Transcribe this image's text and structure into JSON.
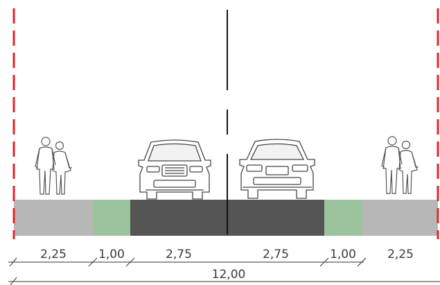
{
  "cross_section": {
    "segments": [
      {
        "name": "sidewalk-left",
        "width_label": "2,25",
        "color": "#b7b7b7"
      },
      {
        "name": "green-strip-left",
        "width_label": "1,00",
        "color": "#9cc49c"
      },
      {
        "name": "lane-left",
        "width_label": "2,75",
        "color": "#555555"
      },
      {
        "name": "lane-right",
        "width_label": "2,75",
        "color": "#555555"
      },
      {
        "name": "green-strip-right",
        "width_label": "1,00",
        "color": "#9cc49c"
      },
      {
        "name": "sidewalk-right",
        "width_label": "2,25",
        "color": "#b7b7b7"
      }
    ],
    "total_label": "12,00",
    "colors": {
      "boundary": "#e8202a",
      "centerline": "#111111",
      "sketch": "#555555"
    },
    "icons": [
      "pedestrians-icon-left",
      "car-front-icon",
      "car-rear-icon",
      "pedestrians-icon-right"
    ]
  }
}
